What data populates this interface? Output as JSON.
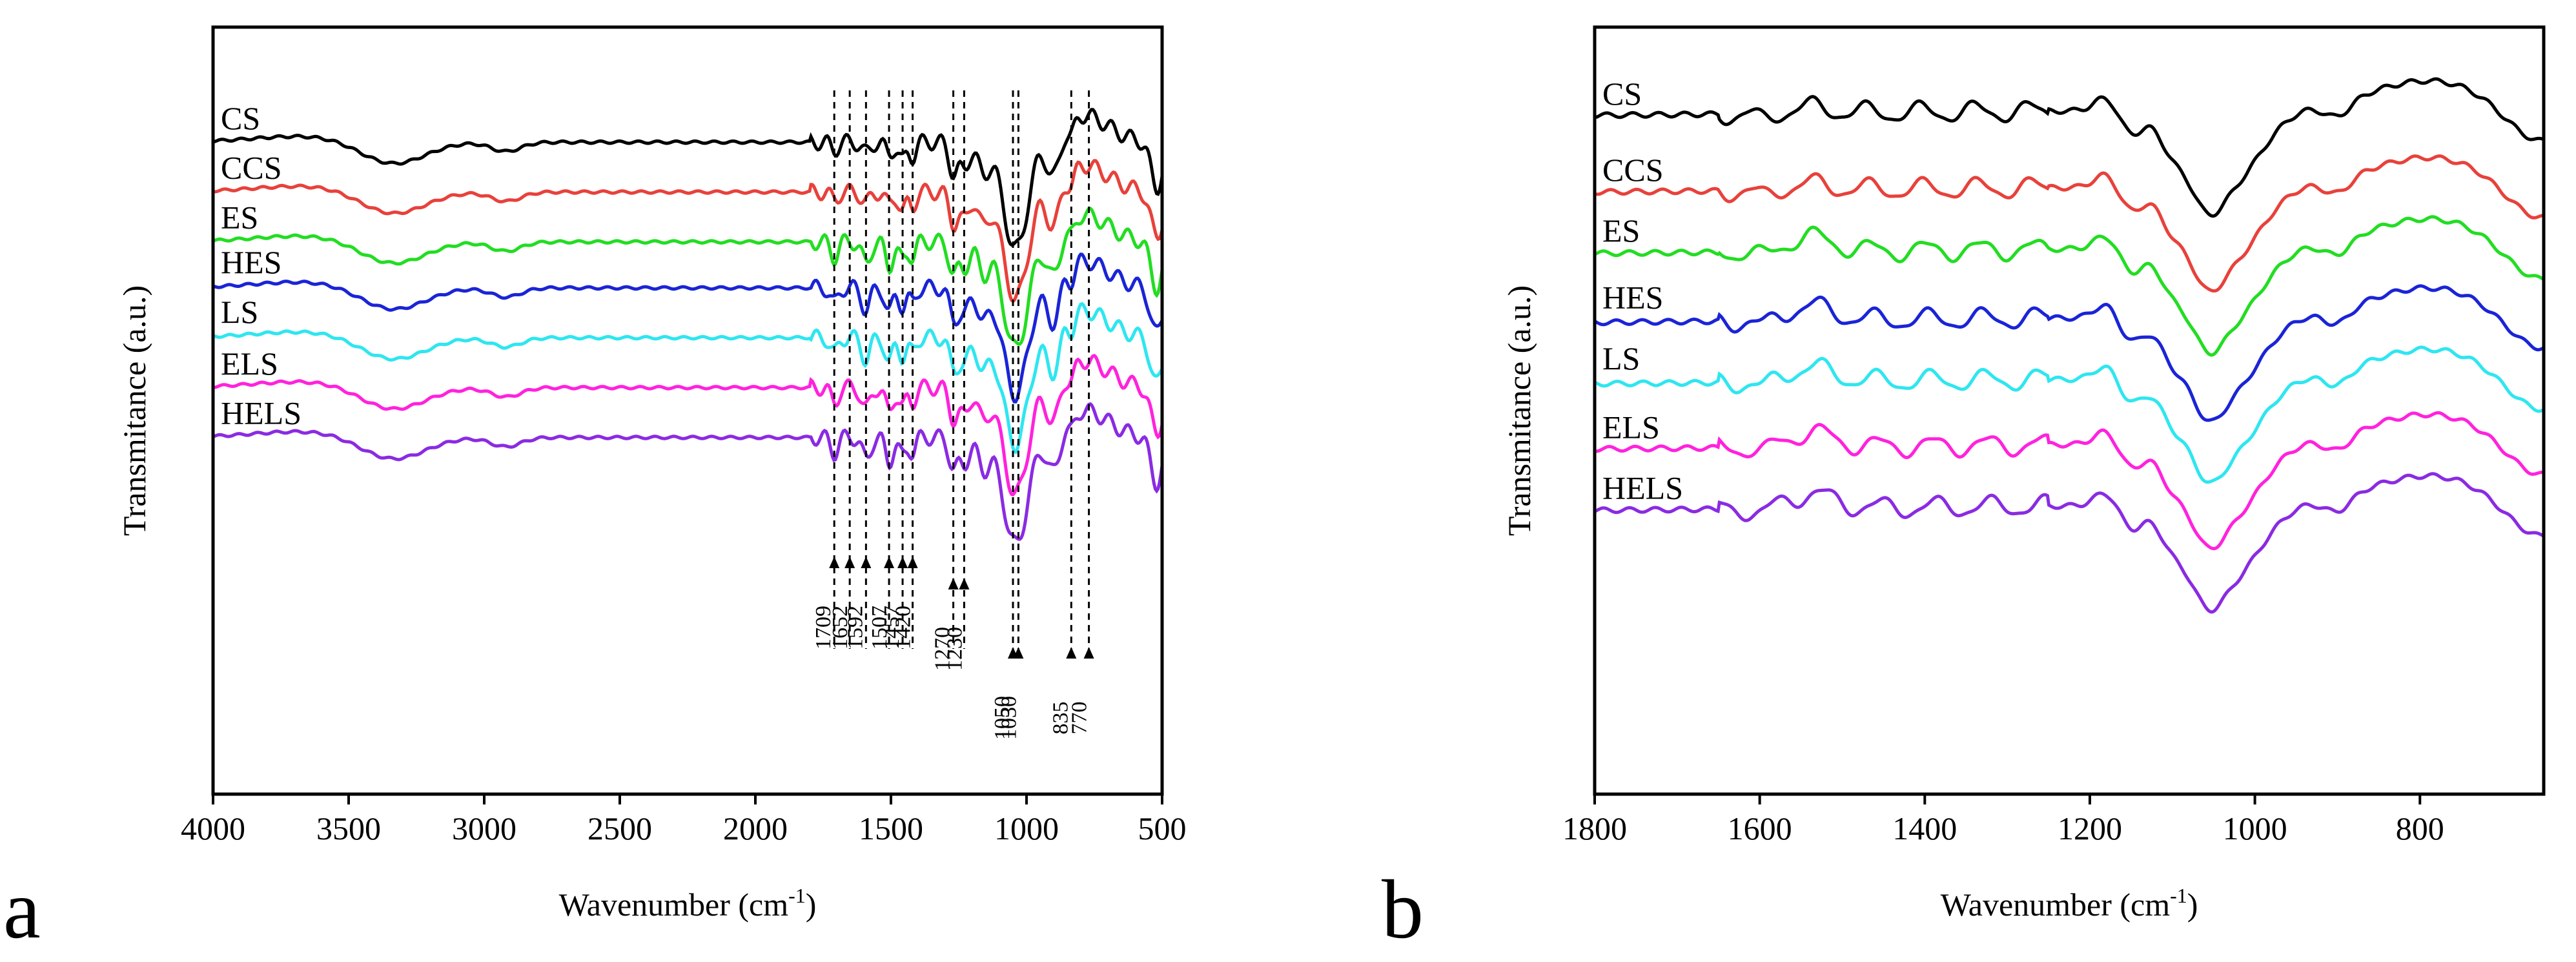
{
  "chart_data": [
    {
      "panel_label": "a",
      "type": "line",
      "title": "",
      "xlabel_main": "Wavenumber (cm",
      "xlabel_sup": "-1",
      "xlabel_close": ")",
      "ylabel": "Transmitance (a.u.)",
      "xlim": [
        4000,
        500
      ],
      "ylim": [
        0,
        1
      ],
      "x_ticks": [
        4000,
        3500,
        3000,
        2500,
        2000,
        1500,
        1000,
        500
      ],
      "series": [
        {
          "name": "CS",
          "color": "#000000",
          "baseline": 0.85
        },
        {
          "name": "CCS",
          "color": "#e8413b",
          "baseline": 0.785
        },
        {
          "name": "ES",
          "color": "#22dd22",
          "baseline": 0.72
        },
        {
          "name": "HES",
          "color": "#1a24d6",
          "baseline": 0.66
        },
        {
          "name": "LS",
          "color": "#2ee6f0",
          "baseline": 0.595
        },
        {
          "name": "ELS",
          "color": "#ff22dd",
          "baseline": 0.53
        },
        {
          "name": "HELS",
          "color": "#8a2be2",
          "baseline": 0.465
        }
      ],
      "peak_markers": [
        {
          "label": "1709",
          "x": 1709
        },
        {
          "label": "1652",
          "x": 1652
        },
        {
          "label": "1592",
          "x": 1592
        },
        {
          "label": "1507",
          "x": 1507
        },
        {
          "label": "1457",
          "x": 1457
        },
        {
          "label": "1420",
          "x": 1420
        },
        {
          "label": "1270",
          "x": 1270
        },
        {
          "label": "1230",
          "x": 1230
        },
        {
          "label": "1050",
          "x": 1050
        },
        {
          "label": "1030",
          "x": 1030
        },
        {
          "label": "835",
          "x": 835
        },
        {
          "label": "770",
          "x": 770
        }
      ]
    },
    {
      "panel_label": "b",
      "type": "line",
      "title": "",
      "xlabel_main": "Wavenumber (cm",
      "xlabel_sup": "-1",
      "xlabel_close": ")",
      "ylabel": "Transmitance (a.u.)",
      "xlim": [
        1800,
        650
      ],
      "ylim": [
        0,
        1
      ],
      "x_ticks": [
        1800,
        1600,
        1400,
        1200,
        1000,
        800
      ],
      "series": [
        {
          "name": "CS",
          "color": "#000000",
          "baseline": 0.885
        },
        {
          "name": "CCS",
          "color": "#e8413b",
          "baseline": 0.785
        },
        {
          "name": "ES",
          "color": "#22dd22",
          "baseline": 0.705
        },
        {
          "name": "HES",
          "color": "#1a24d6",
          "baseline": 0.615
        },
        {
          "name": "LS",
          "color": "#2ee6f0",
          "baseline": 0.535
        },
        {
          "name": "ELS",
          "color": "#ff22dd",
          "baseline": 0.45
        },
        {
          "name": "HELS",
          "color": "#8a2be2",
          "baseline": 0.37
        }
      ]
    }
  ]
}
